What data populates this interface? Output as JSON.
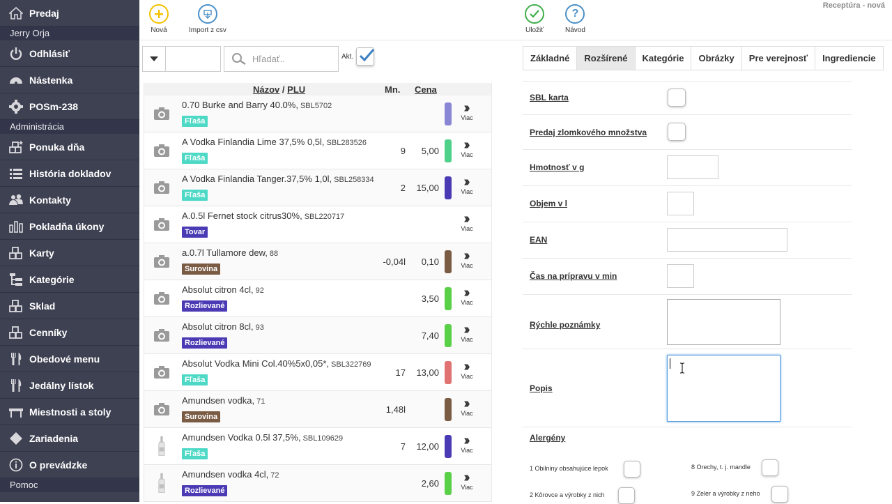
{
  "sidebar": {
    "items": [
      {
        "label": "Predaj",
        "icon": "home-icon"
      },
      {
        "label": "Odhlásiť",
        "icon": "power-icon"
      },
      {
        "label": "Nástenka",
        "icon": "dashboard-icon"
      },
      {
        "label": "POSm-238",
        "icon": "gear-icon"
      },
      {
        "label": "Ponuka dňa",
        "icon": "boxes-star-icon"
      },
      {
        "label": "História dokladov",
        "icon": "list-icon"
      },
      {
        "label": "Kontakty",
        "icon": "users-icon"
      },
      {
        "label": "Pokladňa úkony",
        "icon": "bar-chart-icon"
      },
      {
        "label": "Karty",
        "icon": "boxes-icon"
      },
      {
        "label": "Kategórie",
        "icon": "sitemap-icon"
      },
      {
        "label": "Sklad",
        "icon": "boxes-icon"
      },
      {
        "label": "Cenníky",
        "icon": "boxes-icon"
      },
      {
        "label": "Obedové menu",
        "icon": "cutlery-icon"
      },
      {
        "label": "Jedálny lístok",
        "icon": "cutlery-icon"
      },
      {
        "label": "Miestnosti a stoly",
        "icon": "table-icon"
      },
      {
        "label": "Zariadenia",
        "icon": "diamond-icon"
      },
      {
        "label": "O prevádzke",
        "icon": "info-icon"
      }
    ],
    "user": "Jerry Orja",
    "section_admin": "Administrácia",
    "section_help": "Pomoc"
  },
  "toolbar": {
    "new_label": "Nová",
    "import_label": "Import z csv",
    "save_label": "Uložiť",
    "help_label": "Návod",
    "heading": "Receptúra - nová",
    "colors": {
      "new": "#f2c200",
      "import": "#4a90c8",
      "save": "#3fae49",
      "help": "#4a90c8"
    }
  },
  "filter": {
    "search_placeholder": "Hľadať..",
    "akt_label": "Akt."
  },
  "list": {
    "header": {
      "name": "Názov",
      "sep": "/",
      "plu": "PLU",
      "qty": "Mn.",
      "price": "Cena"
    },
    "more_label": "Viac",
    "rows": [
      {
        "name": "0.70 Burke and Barry 40.0%,",
        "code": "SBL5702",
        "badge": "Fľaša",
        "badge_color": "#4dd9c6",
        "qty": "",
        "price": "",
        "bar_color": "#8a86d6",
        "thumb": "camera"
      },
      {
        "name": "A Vodka Finlandia Lime 37,5% 0,5l,",
        "code": "SBL283526",
        "badge": "Fľaša",
        "badge_color": "#4dd9c6",
        "qty": "9",
        "price": "5,00",
        "bar_color": "#4fd18a",
        "thumb": "camera"
      },
      {
        "name": "A Vodka Finlandia Tanger.37,5% 1,0l,",
        "code": "SBL258334",
        "badge": "Fľaša",
        "badge_color": "#4dd9c6",
        "qty": "2",
        "price": "15,00",
        "bar_color": "#4a3bb5",
        "thumb": "camera"
      },
      {
        "name": "A.0.5l Fernet stock citrus30%,",
        "code": "SBL220717",
        "badge": "Tovar",
        "badge_color": "#4a3bb5",
        "qty": "",
        "price": "",
        "bar_color": "",
        "thumb": "camera"
      },
      {
        "name": "a.0.7l Tullamore dew,",
        "code": "88",
        "badge": "Surovina",
        "badge_color": "#7a5c45",
        "qty": "-0,04l",
        "price": "0,10",
        "bar_color": "#7a5c45",
        "thumb": "camera"
      },
      {
        "name": "Absolut citron 4cl,",
        "code": "92",
        "badge": "Rozlievané",
        "badge_color": "#4a3bb5",
        "qty": "",
        "price": "3,50",
        "bar_color": "#5ad048",
        "thumb": "camera"
      },
      {
        "name": "Absolut citron 8cl,",
        "code": "93",
        "badge": "Rozlievané",
        "badge_color": "#4a3bb5",
        "qty": "",
        "price": "7,40",
        "bar_color": "#5ad048",
        "thumb": "camera"
      },
      {
        "name": "Absolut Vodka Mini Col.40%5x0,05*,",
        "code": "SBL322769",
        "badge": "Fľaša",
        "badge_color": "#4dd9c6",
        "qty": "17",
        "price": "13,00",
        "bar_color": "#e07272",
        "thumb": "camera"
      },
      {
        "name": "Amundsen vodka,",
        "code": "71",
        "badge": "Surovina",
        "badge_color": "#7a5c45",
        "qty": "1,48l",
        "price": "",
        "bar_color": "#7a5c45",
        "thumb": "camera"
      },
      {
        "name": "Amundsen Vodka 0.5l 37,5%,",
        "code": "SBL109629",
        "badge": "Fľaša",
        "badge_color": "#4dd9c6",
        "qty": "7",
        "price": "12,00",
        "bar_color": "#4a3bb5",
        "thumb": "bottle"
      },
      {
        "name": "Amundsen vodka 4cl,",
        "code": "72",
        "badge": "Rozlievané",
        "badge_color": "#4a3bb5",
        "qty": "",
        "price": "2,60",
        "bar_color": "#5ad048",
        "thumb": "bottle"
      }
    ]
  },
  "tabs": [
    "Základné",
    "Rozšírené",
    "Kategórie",
    "Obrázky",
    "Pre verejnosť",
    "Ingrediencie"
  ],
  "active_tab": "Rozšírené",
  "form": {
    "sbl_card": "SBL karta",
    "fraction_sale": "Predaj zlomkového množstva",
    "weight": "Hmotnosť v g",
    "volume": "Objem v l",
    "ean": "EAN",
    "prep_time": "Čas na prípravu v min",
    "quick_notes": "Rýchle poznámky",
    "description": "Popis",
    "allergens": "Alergény",
    "allergen_items": [
      "1 Obilniny obsahujúce lepok",
      "8 Orechy, t. j. mandle",
      "2 Kôrovce a výrobky z nich",
      "9 Zeler a výrobky z neho"
    ]
  }
}
